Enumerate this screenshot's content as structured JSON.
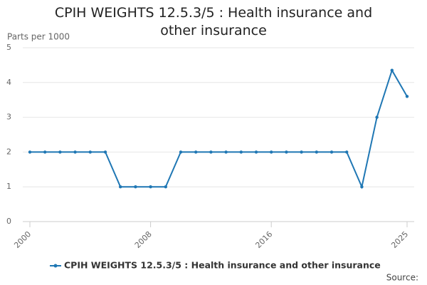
{
  "chart_data": {
    "type": "line",
    "title": "CPIH WEIGHTS 12.5.3/5 : Health insurance and other insurance",
    "y_label": "Parts per 1000",
    "source": "Source:",
    "x": [
      2000,
      2001,
      2002,
      2003,
      2004,
      2005,
      2006,
      2007,
      2008,
      2009,
      2010,
      2011,
      2012,
      2013,
      2014,
      2015,
      2016,
      2017,
      2018,
      2019,
      2020,
      2021,
      2022,
      2023,
      2024,
      2025
    ],
    "series": [
      {
        "name": "CPIH WEIGHTS 12.5.3/5 : Health insurance and other insurance",
        "color": "#1f77b4",
        "values": [
          2,
          2,
          2,
          2,
          2,
          2,
          1,
          1,
          1,
          1,
          2,
          2,
          2,
          2,
          2,
          2,
          2,
          2,
          2,
          2,
          2,
          2,
          1,
          3,
          4.35,
          3.6
        ]
      }
    ],
    "xlim": [
      2000,
      2025
    ],
    "xticks": [
      2000,
      2008,
      2016,
      2025
    ],
    "ylim": [
      0,
      5
    ],
    "yticks": [
      0,
      1,
      2,
      3,
      4,
      5
    ],
    "grid": true
  }
}
